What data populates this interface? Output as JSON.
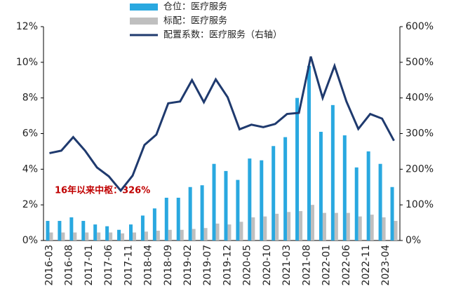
{
  "chart_data": {
    "type": "bar_line",
    "xticks": [
      "2016-03",
      "2016-08",
      "2017-01",
      "2017-06",
      "2017-11",
      "2018-04",
      "2018-09",
      "2019-02",
      "2019-07",
      "2019-12",
      "2020-05",
      "2020-10",
      "2021-03",
      "2021-08",
      "2022-01",
      "2022-06",
      "2022-11",
      "2023-04"
    ],
    "series": [
      {
        "name": "仓位：医疗服务",
        "type": "bar",
        "color": "#29a8e0",
        "values": [
          1.1,
          1.1,
          1.3,
          1.1,
          0.9,
          0.8,
          0.6,
          0.9,
          1.4,
          1.8,
          2.4,
          2.4,
          3.0,
          3.1,
          4.3,
          3.9,
          3.4,
          4.6,
          4.5,
          5.3,
          5.8,
          8.0,
          9.8,
          6.1,
          7.6,
          5.9,
          4.1,
          5.0,
          4.3,
          3.0
        ]
      },
      {
        "name": "标配：医疗服务",
        "type": "bar",
        "color": "#bfbfbf",
        "values": [
          0.45,
          0.45,
          0.45,
          0.45,
          0.45,
          0.45,
          0.4,
          0.45,
          0.5,
          0.55,
          0.6,
          0.6,
          0.65,
          0.7,
          0.95,
          0.9,
          1.05,
          1.3,
          1.35,
          1.5,
          1.6,
          1.65,
          2.0,
          1.55,
          1.55,
          1.55,
          1.35,
          1.45,
          1.3,
          1.1
        ]
      },
      {
        "name": "配置系数：医疗服务（右轴）",
        "type": "line",
        "axis": "y2",
        "color": "#1f3a6e",
        "values": [
          245,
          252,
          290,
          252,
          205,
          180,
          140,
          182,
          268,
          297,
          385,
          390,
          450,
          388,
          452,
          402,
          312,
          325,
          318,
          327,
          355,
          358,
          516,
          400,
          490,
          390,
          313,
          355,
          342,
          280
        ]
      }
    ],
    "ylim": [
      0,
      12
    ],
    "yticks": [
      {
        "value": 0,
        "label": "0%"
      },
      {
        "value": 2,
        "label": "2%"
      },
      {
        "value": 4,
        "label": "4%"
      },
      {
        "value": 6,
        "label": "6%"
      },
      {
        "value": 8,
        "label": "8%"
      },
      {
        "value": 10,
        "label": "10%"
      },
      {
        "value": 12,
        "label": "12%"
      }
    ],
    "y2lim": [
      0,
      600
    ],
    "y2ticks": [
      {
        "value": 0,
        "label": "0%"
      },
      {
        "value": 100,
        "label": "100%"
      },
      {
        "value": 200,
        "label": "200%"
      },
      {
        "value": 300,
        "label": "300%"
      },
      {
        "value": 400,
        "label": "400%"
      },
      {
        "value": 500,
        "label": "500%"
      },
      {
        "value": 600,
        "label": "600%"
      }
    ],
    "annotation": "16年以来中枢：326%"
  }
}
